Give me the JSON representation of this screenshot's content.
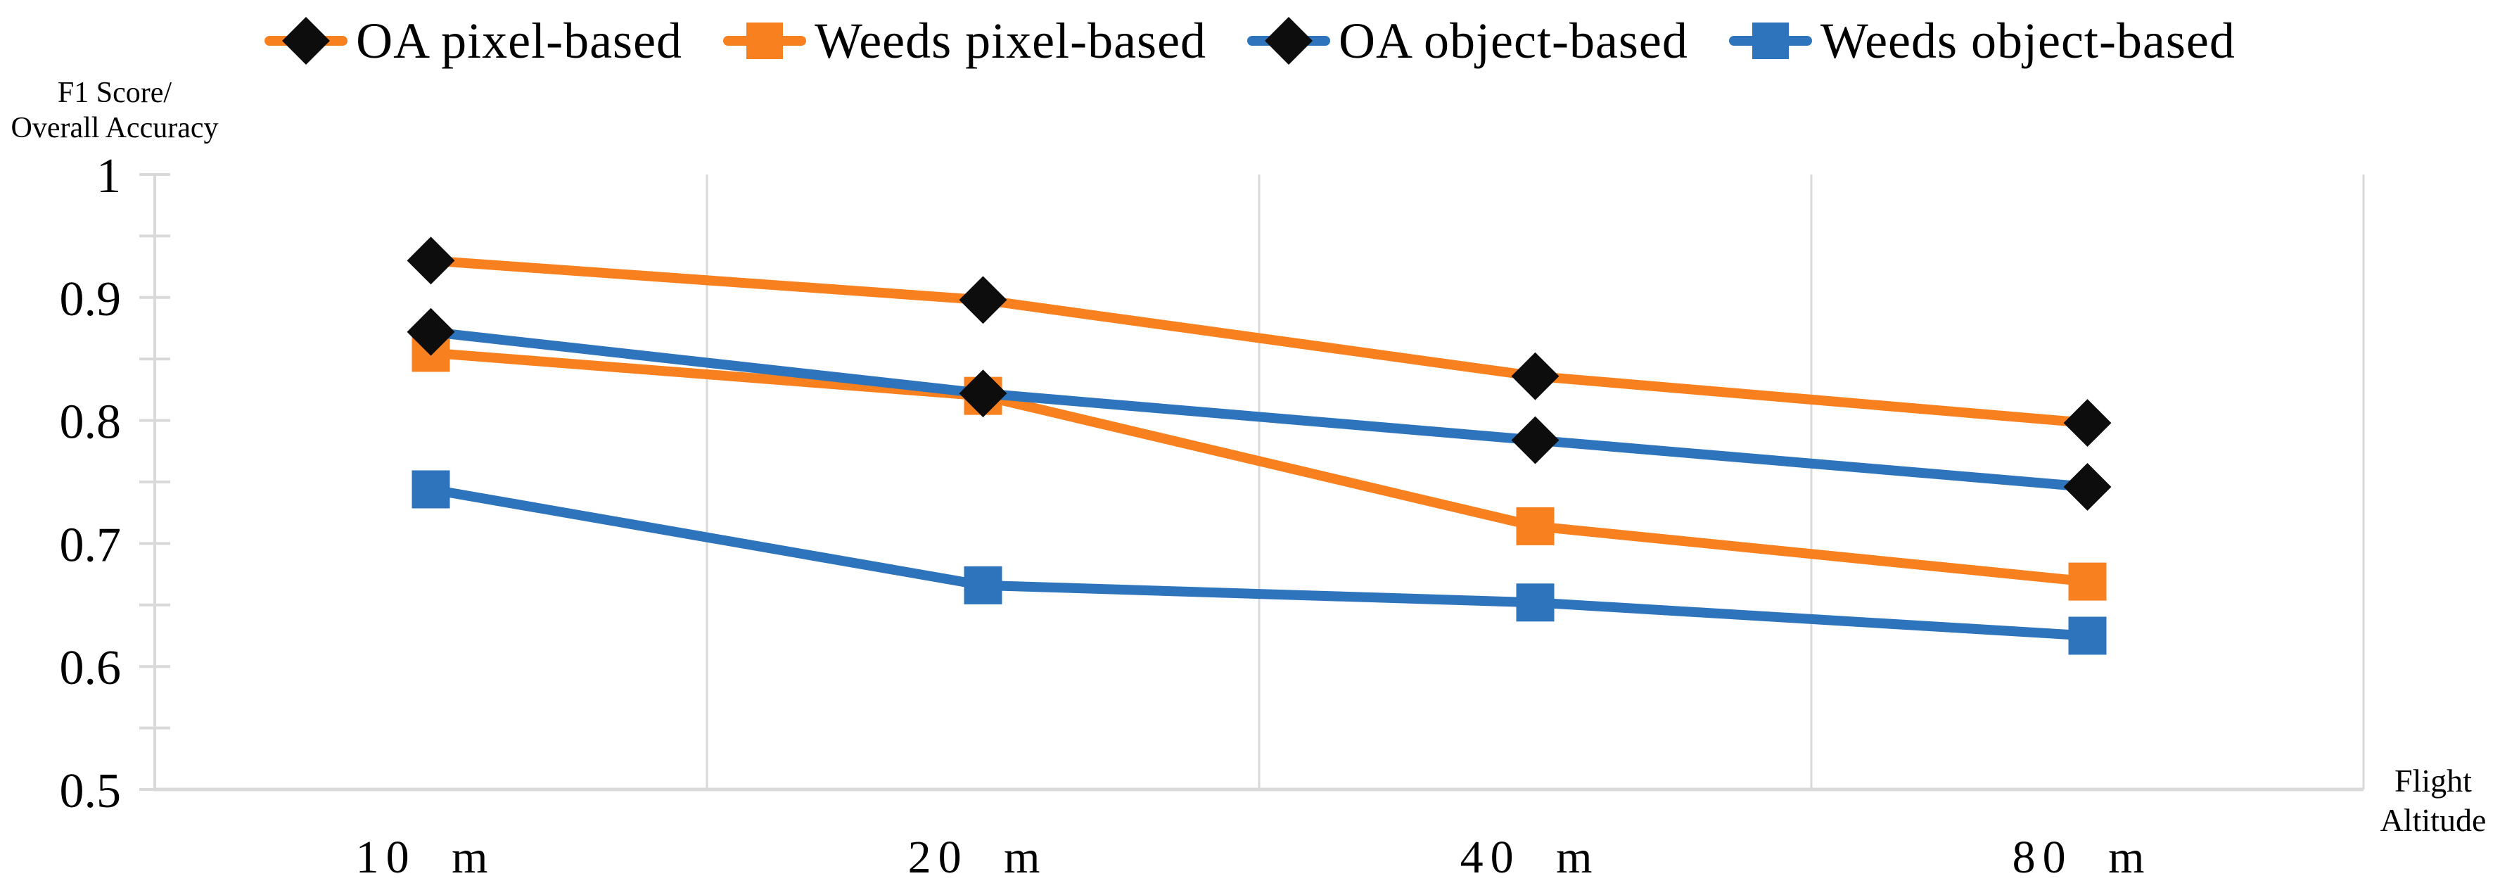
{
  "chart_data": {
    "type": "line",
    "title": "",
    "x_axis_title": "Flight Altitude",
    "y_axis_title": "F1 Score/ Overall Accuracy",
    "categories": [
      "10 m",
      "20 m",
      "40 m",
      "80 m"
    ],
    "series": [
      {
        "name": "OA pixel-based",
        "line_color": "#F8801F",
        "marker": "diamond",
        "marker_color": "#0d0d0d",
        "values": [
          0.93,
          0.898,
          0.836,
          0.798
        ]
      },
      {
        "name": "Weeds pixel-based",
        "line_color": "#F8801F",
        "marker": "square",
        "marker_color": "#F8801F",
        "values": [
          0.855,
          0.82,
          0.714,
          0.669
        ]
      },
      {
        "name": "OA object-based",
        "line_color": "#2E74BC",
        "marker": "diamond",
        "marker_color": "#0d0d0d",
        "values": [
          0.872,
          0.822,
          0.784,
          0.746
        ]
      },
      {
        "name": "Weeds object-based",
        "line_color": "#2E74BC",
        "marker": "square",
        "marker_color": "#2E74BC",
        "values": [
          0.744,
          0.666,
          0.652,
          0.625
        ]
      }
    ],
    "ylim": [
      0.5,
      1.0
    ],
    "y_tick_step": 0.1,
    "y_minor_tick_step": 0.05,
    "grid": "vertical-category-boundaries-only",
    "legend_position": "top",
    "colors": {
      "gridline": "#D9D9D9",
      "axis_line": "#D9D9D9",
      "text": "#000000"
    }
  },
  "y_axis": {
    "title_line1": "F1 Score/",
    "title_line2": "Overall Accuracy",
    "tick_labels": [
      "1",
      "0.9",
      "0.8",
      "0.7",
      "0.6",
      "0.5"
    ]
  },
  "x_axis": {
    "title_line1": "Flight",
    "title_line2": "Altitude",
    "labels": [
      "10 m",
      "20 m",
      "40 m",
      "80 m"
    ]
  }
}
